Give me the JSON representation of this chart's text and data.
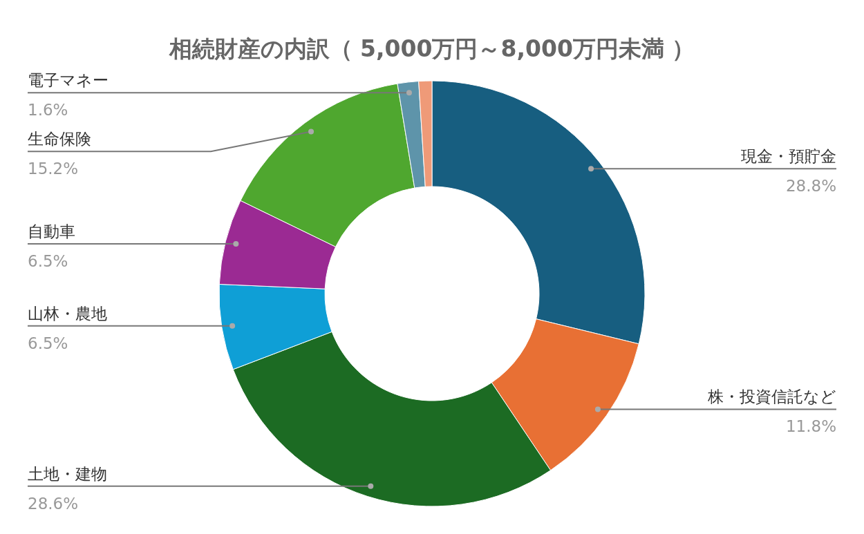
{
  "chart_data": {
    "type": "donut",
    "title": "相続財産の内訳（ 5,000万円～8,000万円未満 ）",
    "categories": [
      "現金・預貯金",
      "株・投資信託など",
      "土地・建物",
      "山林・農地",
      "自動車",
      "生命保険",
      "電子マネー",
      null
    ],
    "values": [
      28.8,
      11.8,
      28.6,
      6.5,
      6.5,
      15.2,
      1.6,
      1.0
    ],
    "colors": [
      "#175e80",
      "#e87034",
      "#1c6b23",
      "#0f9fd6",
      "#9b2a93",
      "#4fa72f",
      "#5e94aa",
      "#ef9a78"
    ],
    "value_labels": [
      "28.8%",
      "11.8%",
      "28.6%",
      "6.5%",
      "6.5%",
      "15.2%",
      "1.6%",
      null
    ]
  }
}
